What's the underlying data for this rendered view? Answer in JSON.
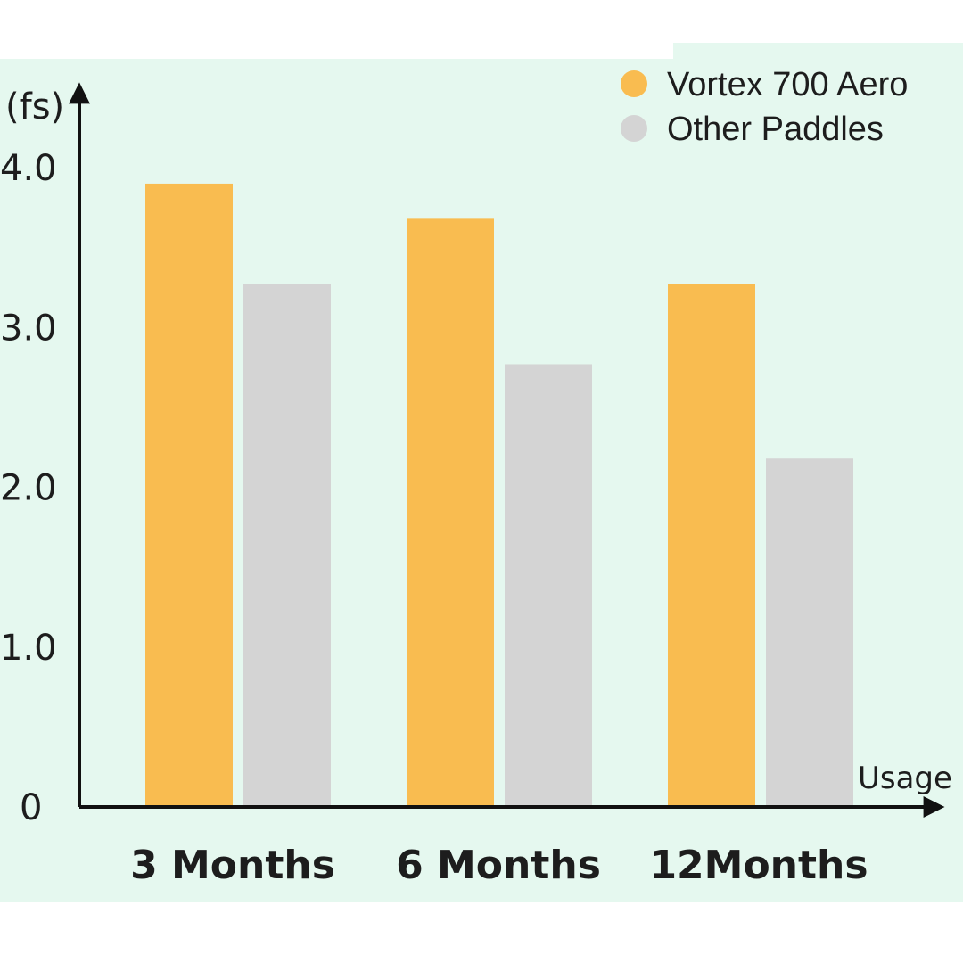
{
  "chart_data": {
    "type": "bar",
    "title": "",
    "ylabel": "(fs)",
    "xlabel": "Usage",
    "categories": [
      "3 Months",
      "6 Months",
      "12Months"
    ],
    "series": [
      {
        "name": "Vortex 700 Aero",
        "color": "#f9bc50",
        "values": [
          3.9,
          3.68,
          3.27
        ]
      },
      {
        "name": "Other Paddles",
        "color": "#d4d4d4",
        "values": [
          3.27,
          2.77,
          2.18
        ]
      }
    ],
    "yticks": [
      "0",
      "1.0",
      "2.0",
      "3.0",
      "4.0"
    ],
    "ytick_values": [
      0,
      1,
      2,
      3,
      4
    ],
    "ylim": [
      0,
      4.0
    ],
    "legend_position": "top-right",
    "grid": false,
    "axis_color": "#111111"
  }
}
